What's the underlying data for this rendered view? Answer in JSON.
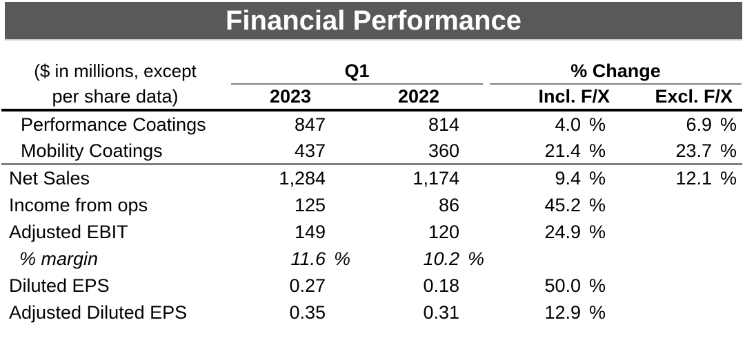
{
  "title_bar": {
    "title": "Financial Performance"
  },
  "table": {
    "unit_note": {
      "line1": "($ in millions, except",
      "line2": "per share data)"
    },
    "group_headers": {
      "q1": "Q1",
      "pct_change": "% Change"
    },
    "column_headers": {
      "y2023": "2023",
      "y2022": "2022",
      "incl_fx": "Incl. F/X",
      "excl_fx": "Excl. F/X"
    },
    "rows": [
      {
        "label": "Performance Coatings",
        "y2023": "847",
        "y2023_sfx": "",
        "y2022": "814",
        "y2022_sfx": "",
        "incl": "4.0",
        "incl_sfx": "%",
        "excl": "6.9",
        "excl_sfx": "%"
      },
      {
        "label": "Mobility Coatings",
        "y2023": "437",
        "y2023_sfx": "",
        "y2022": "360",
        "y2022_sfx": "",
        "incl": "21.4",
        "incl_sfx": "%",
        "excl": "23.7",
        "excl_sfx": "%"
      },
      {
        "label": "Net Sales",
        "y2023": "1,284",
        "y2023_sfx": "",
        "y2022": "1,174",
        "y2022_sfx": "",
        "incl": "9.4",
        "incl_sfx": "%",
        "excl": "12.1",
        "excl_sfx": "%"
      },
      {
        "label": "Income from ops",
        "y2023": "125",
        "y2023_sfx": "",
        "y2022": "86",
        "y2022_sfx": "",
        "incl": "45.2",
        "incl_sfx": "%",
        "excl": "",
        "excl_sfx": ""
      },
      {
        "label": "Adjusted EBIT",
        "y2023": "149",
        "y2023_sfx": "",
        "y2022": "120",
        "y2022_sfx": "",
        "incl": "24.9",
        "incl_sfx": "%",
        "excl": "",
        "excl_sfx": ""
      },
      {
        "label": "% margin",
        "y2023": "11.6",
        "y2023_sfx": "%",
        "y2022": "10.2",
        "y2022_sfx": "%",
        "incl": "",
        "incl_sfx": "",
        "excl": "",
        "excl_sfx": ""
      },
      {
        "label": "Diluted EPS",
        "y2023": "0.27",
        "y2023_sfx": "",
        "y2022": "0.18",
        "y2022_sfx": "",
        "incl": "50.0",
        "incl_sfx": "%",
        "excl": "",
        "excl_sfx": ""
      },
      {
        "label": "Adjusted Diluted EPS",
        "y2023": "0.35",
        "y2023_sfx": "",
        "y2022": "0.31",
        "y2022_sfx": "",
        "incl": "12.9",
        "incl_sfx": "%",
        "excl": "",
        "excl_sfx": ""
      }
    ]
  },
  "colors": {
    "banner_bg": "#595959",
    "banner_text": "#ffffff",
    "banner_edge": "#d9d9d9",
    "rule_gray": "#7f7f7f",
    "rule_black": "#000000"
  }
}
